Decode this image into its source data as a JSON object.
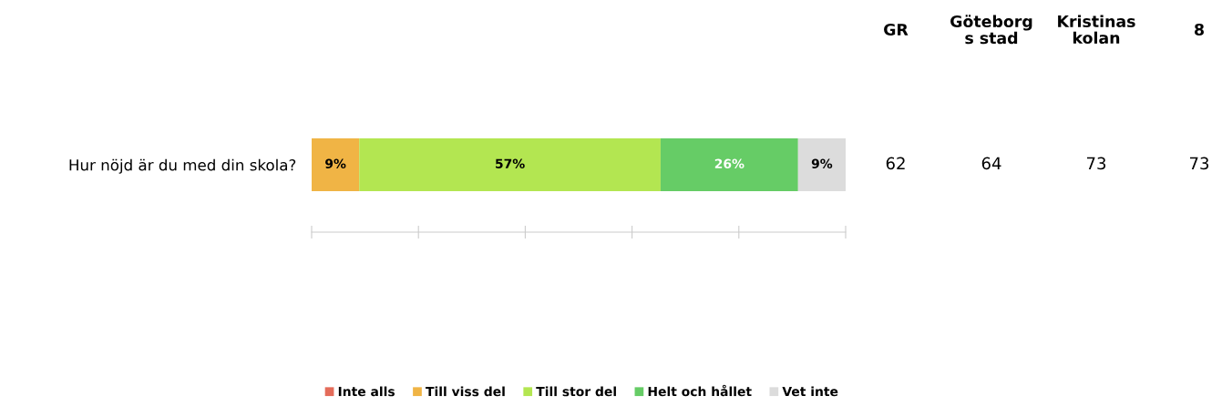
{
  "chart_data": {
    "type": "bar",
    "orientation": "horizontal",
    "stacked": true,
    "categories": [
      "Hur nöjd är du med din skola?"
    ],
    "series": [
      {
        "name": "Inte alls",
        "color": "#e46c5a",
        "values": [
          0
        ],
        "value_labels": [
          null
        ]
      },
      {
        "name": "Till viss del",
        "color": "#f0b445",
        "values": [
          9
        ],
        "value_labels": [
          "9%"
        ]
      },
      {
        "name": "Till stor del",
        "color": "#b3e651",
        "values": [
          57
        ],
        "value_labels": [
          "57%"
        ]
      },
      {
        "name": "Helt och hållet",
        "color": "#66cc66",
        "values": [
          26
        ],
        "value_labels": [
          "26%"
        ]
      },
      {
        "name": "Vet inte",
        "color": "#dcdcdc",
        "values": [
          9
        ],
        "value_labels": [
          "9%"
        ]
      }
    ],
    "tick_labels": "y",
    "grid": false,
    "legend": "bottom",
    "annotations": [
      "GR",
      "Göteborg\ns stad",
      "Kristinas\nkolan",
      "8",
      "62",
      "64",
      "73",
      "73"
    ]
  }
}
